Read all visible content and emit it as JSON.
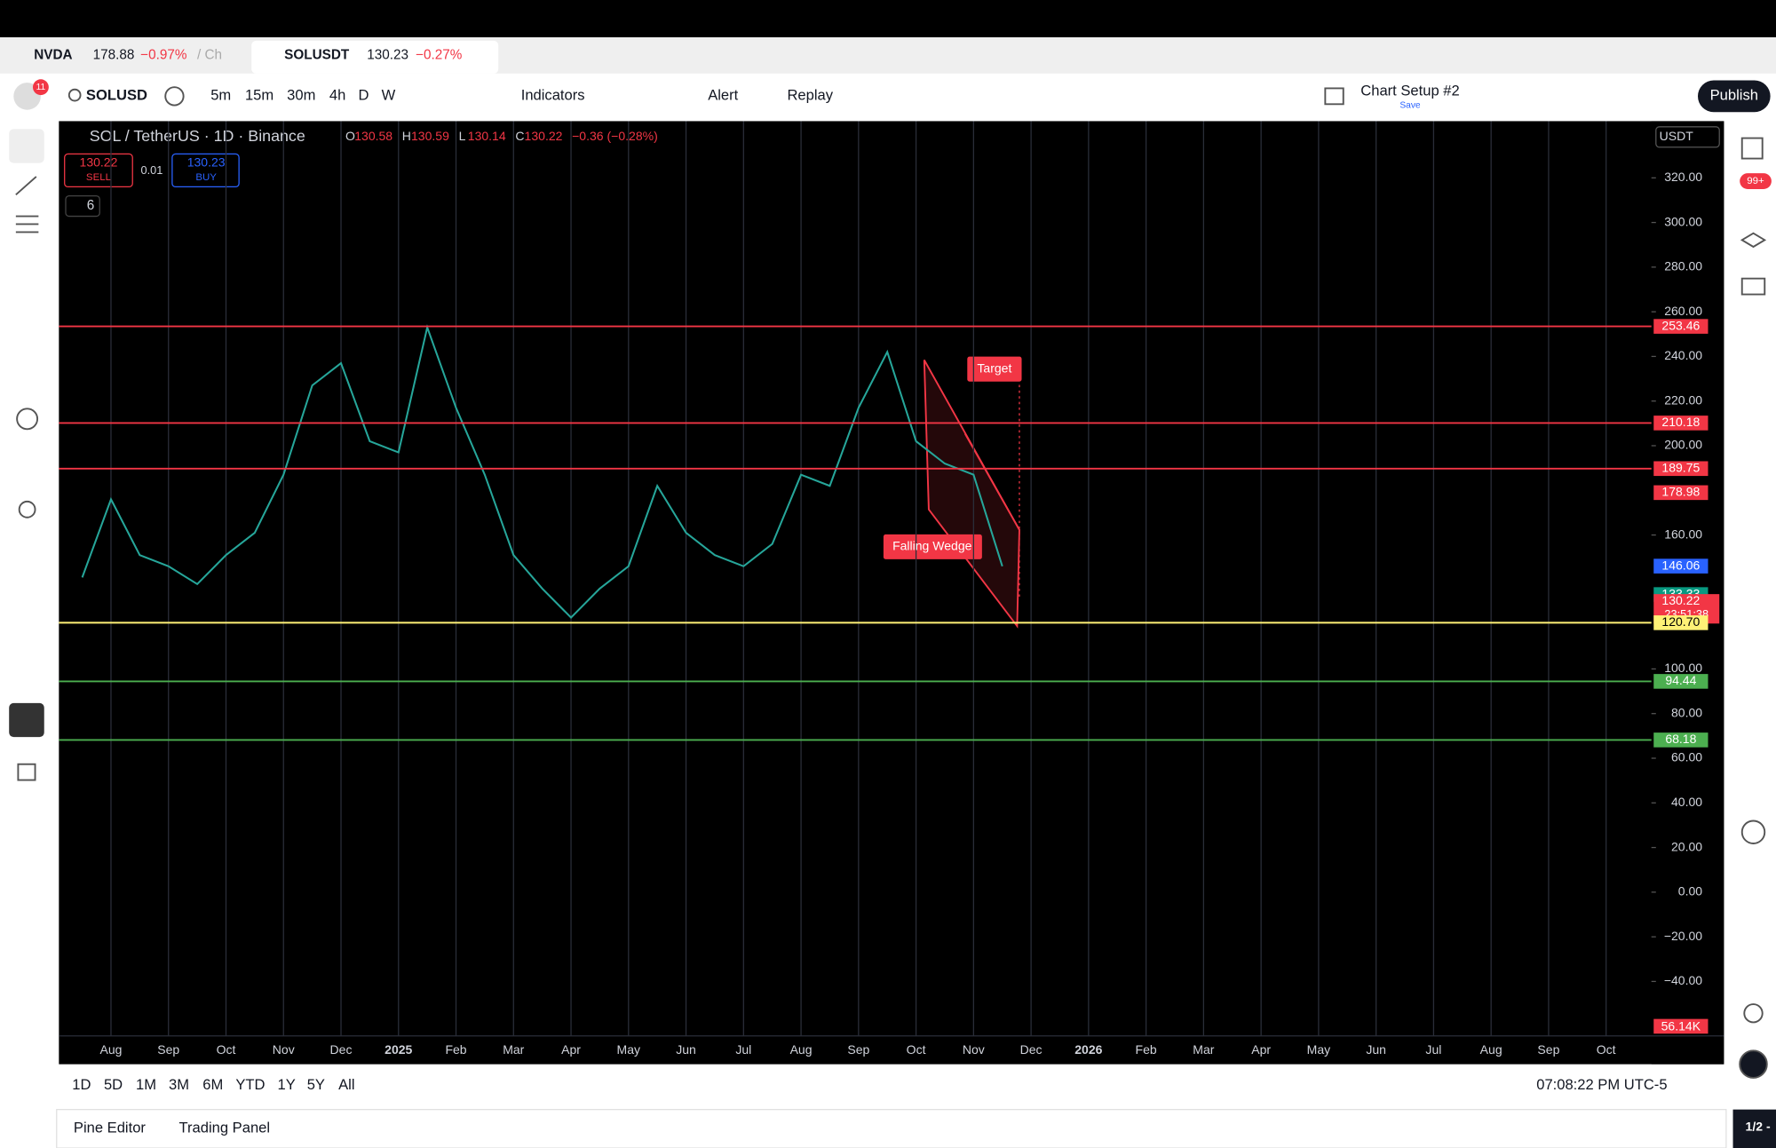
{
  "tabs": [
    {
      "symbol": "NVDA",
      "price": "178.88",
      "change": "−0.97%",
      "extra": "/ Ch"
    },
    {
      "symbol": "SOLUSDT",
      "price": "130.23",
      "change": "−0.27%"
    }
  ],
  "notification_badge": "11",
  "toolbar": {
    "symbol": "SOLUSD",
    "intervals": [
      "5m",
      "15m",
      "30m",
      "4h",
      "D",
      "W"
    ],
    "indicators": "Indicators",
    "alert": "Alert",
    "replay": "Replay",
    "layout": "Chart Setup #2",
    "save": "Save",
    "publish": "Publish"
  },
  "legend": {
    "title": "SOL / TetherUS · 1D · Binance",
    "ohlc": [
      "O",
      "130.58",
      "H",
      "130.59",
      "L",
      "130.14",
      "C",
      "130.22",
      "−0.36 (−0.28%)"
    ],
    "sell_price": "130.22",
    "sell": "SELL",
    "spread": "0.01",
    "buy_price": "130.23",
    "buy": "BUY",
    "indicators_count": "6"
  },
  "currency": "USDT",
  "right_badge": "99+",
  "chart_data": {
    "type": "line",
    "color": "#26a69a",
    "categories": [
      null,
      "Aug",
      null,
      "Sep",
      null,
      "Oct",
      null,
      "Nov",
      null,
      "Dec",
      null,
      "2025",
      null,
      "Feb",
      null,
      "Mar",
      null,
      "Apr",
      null,
      "May",
      null,
      "Jun",
      null,
      "Jul",
      null,
      "Aug",
      null,
      "Sep",
      null,
      "Oct",
      null,
      "Nov",
      null,
      "Dec",
      null,
      "2026",
      null,
      "Feb",
      null,
      "Mar",
      null,
      "Apr",
      null,
      "May",
      null,
      "Jun",
      null,
      "Jul",
      null,
      "Aug",
      null,
      "Sep",
      null,
      "Oct"
    ],
    "values": [
      141,
      176,
      151,
      146,
      138,
      151,
      161,
      187,
      227,
      237,
      202,
      197,
      253,
      217,
      187,
      151,
      136,
      123,
      136,
      146,
      182,
      161,
      151,
      146,
      156,
      187,
      182,
      217,
      242,
      202,
      192,
      187,
      146,
      null,
      null,
      null,
      null,
      null,
      null,
      null,
      null,
      null,
      null,
      null,
      null,
      null,
      null,
      null,
      null,
      null,
      null,
      null,
      null,
      null
    ],
    "ylim": [
      -64.4,
      345.4
    ],
    "yticks": [
      {
        "value": 320,
        "label": "320.00"
      },
      {
        "value": 300,
        "label": "300.00"
      },
      {
        "value": 280,
        "label": "280.00"
      },
      {
        "value": 260,
        "label": "260.00"
      },
      {
        "value": 240,
        "label": "240.00"
      },
      {
        "value": 220,
        "label": "220.00"
      },
      {
        "value": 200,
        "label": "200.00"
      },
      {
        "value": 160,
        "label": "160.00"
      },
      {
        "value": 100,
        "label": "100.00"
      },
      {
        "value": 80,
        "label": "80.00"
      },
      {
        "value": 60,
        "label": "60.00"
      },
      {
        "value": 40,
        "label": "40.00"
      },
      {
        "value": 20,
        "label": "20.00"
      },
      {
        "value": 0,
        "label": "0.00"
      },
      {
        "value": -20,
        "label": "−20.00"
      },
      {
        "value": -40,
        "label": "−40.00"
      }
    ],
    "grid": true,
    "levels": [
      {
        "value": 253.46,
        "color": "#f23645",
        "line": true
      },
      {
        "value": 210.18,
        "color": "#f23645",
        "line": true
      },
      {
        "value": 189.75,
        "color": "#f23645",
        "line": true
      },
      {
        "value": 178.98,
        "color": "#f23645",
        "line": false
      },
      {
        "value": 146.06,
        "color": "#2962ff",
        "line": false
      },
      {
        "value": 133.33,
        "color": "#089981",
        "line": false
      },
      {
        "value": 130.22,
        "color": "#f23645",
        "line": false,
        "countdown": "23:51:38"
      },
      {
        "value": {
          "value": 120.7,
          "label": "120.70"
        },
        "color": "#fff176",
        "line": true
      },
      {
        "value": 94.44,
        "color": "#4caf50",
        "line": true
      },
      {
        "value": 68.18,
        "color": "#4caf50",
        "line": true
      }
    ],
    "annotations": [
      "Target",
      "Falling Wedge"
    ],
    "volume_label": "56.14K"
  },
  "ranges": [
    "1D",
    "5D",
    "1M",
    "3M",
    "6M",
    "YTD",
    "1Y",
    "5Y",
    "All"
  ],
  "clock": "07:08:22 PM UTC-5",
  "bottom_tabs": [
    "Pine Editor",
    "Trading Panel"
  ],
  "pagination": "1/2 -"
}
